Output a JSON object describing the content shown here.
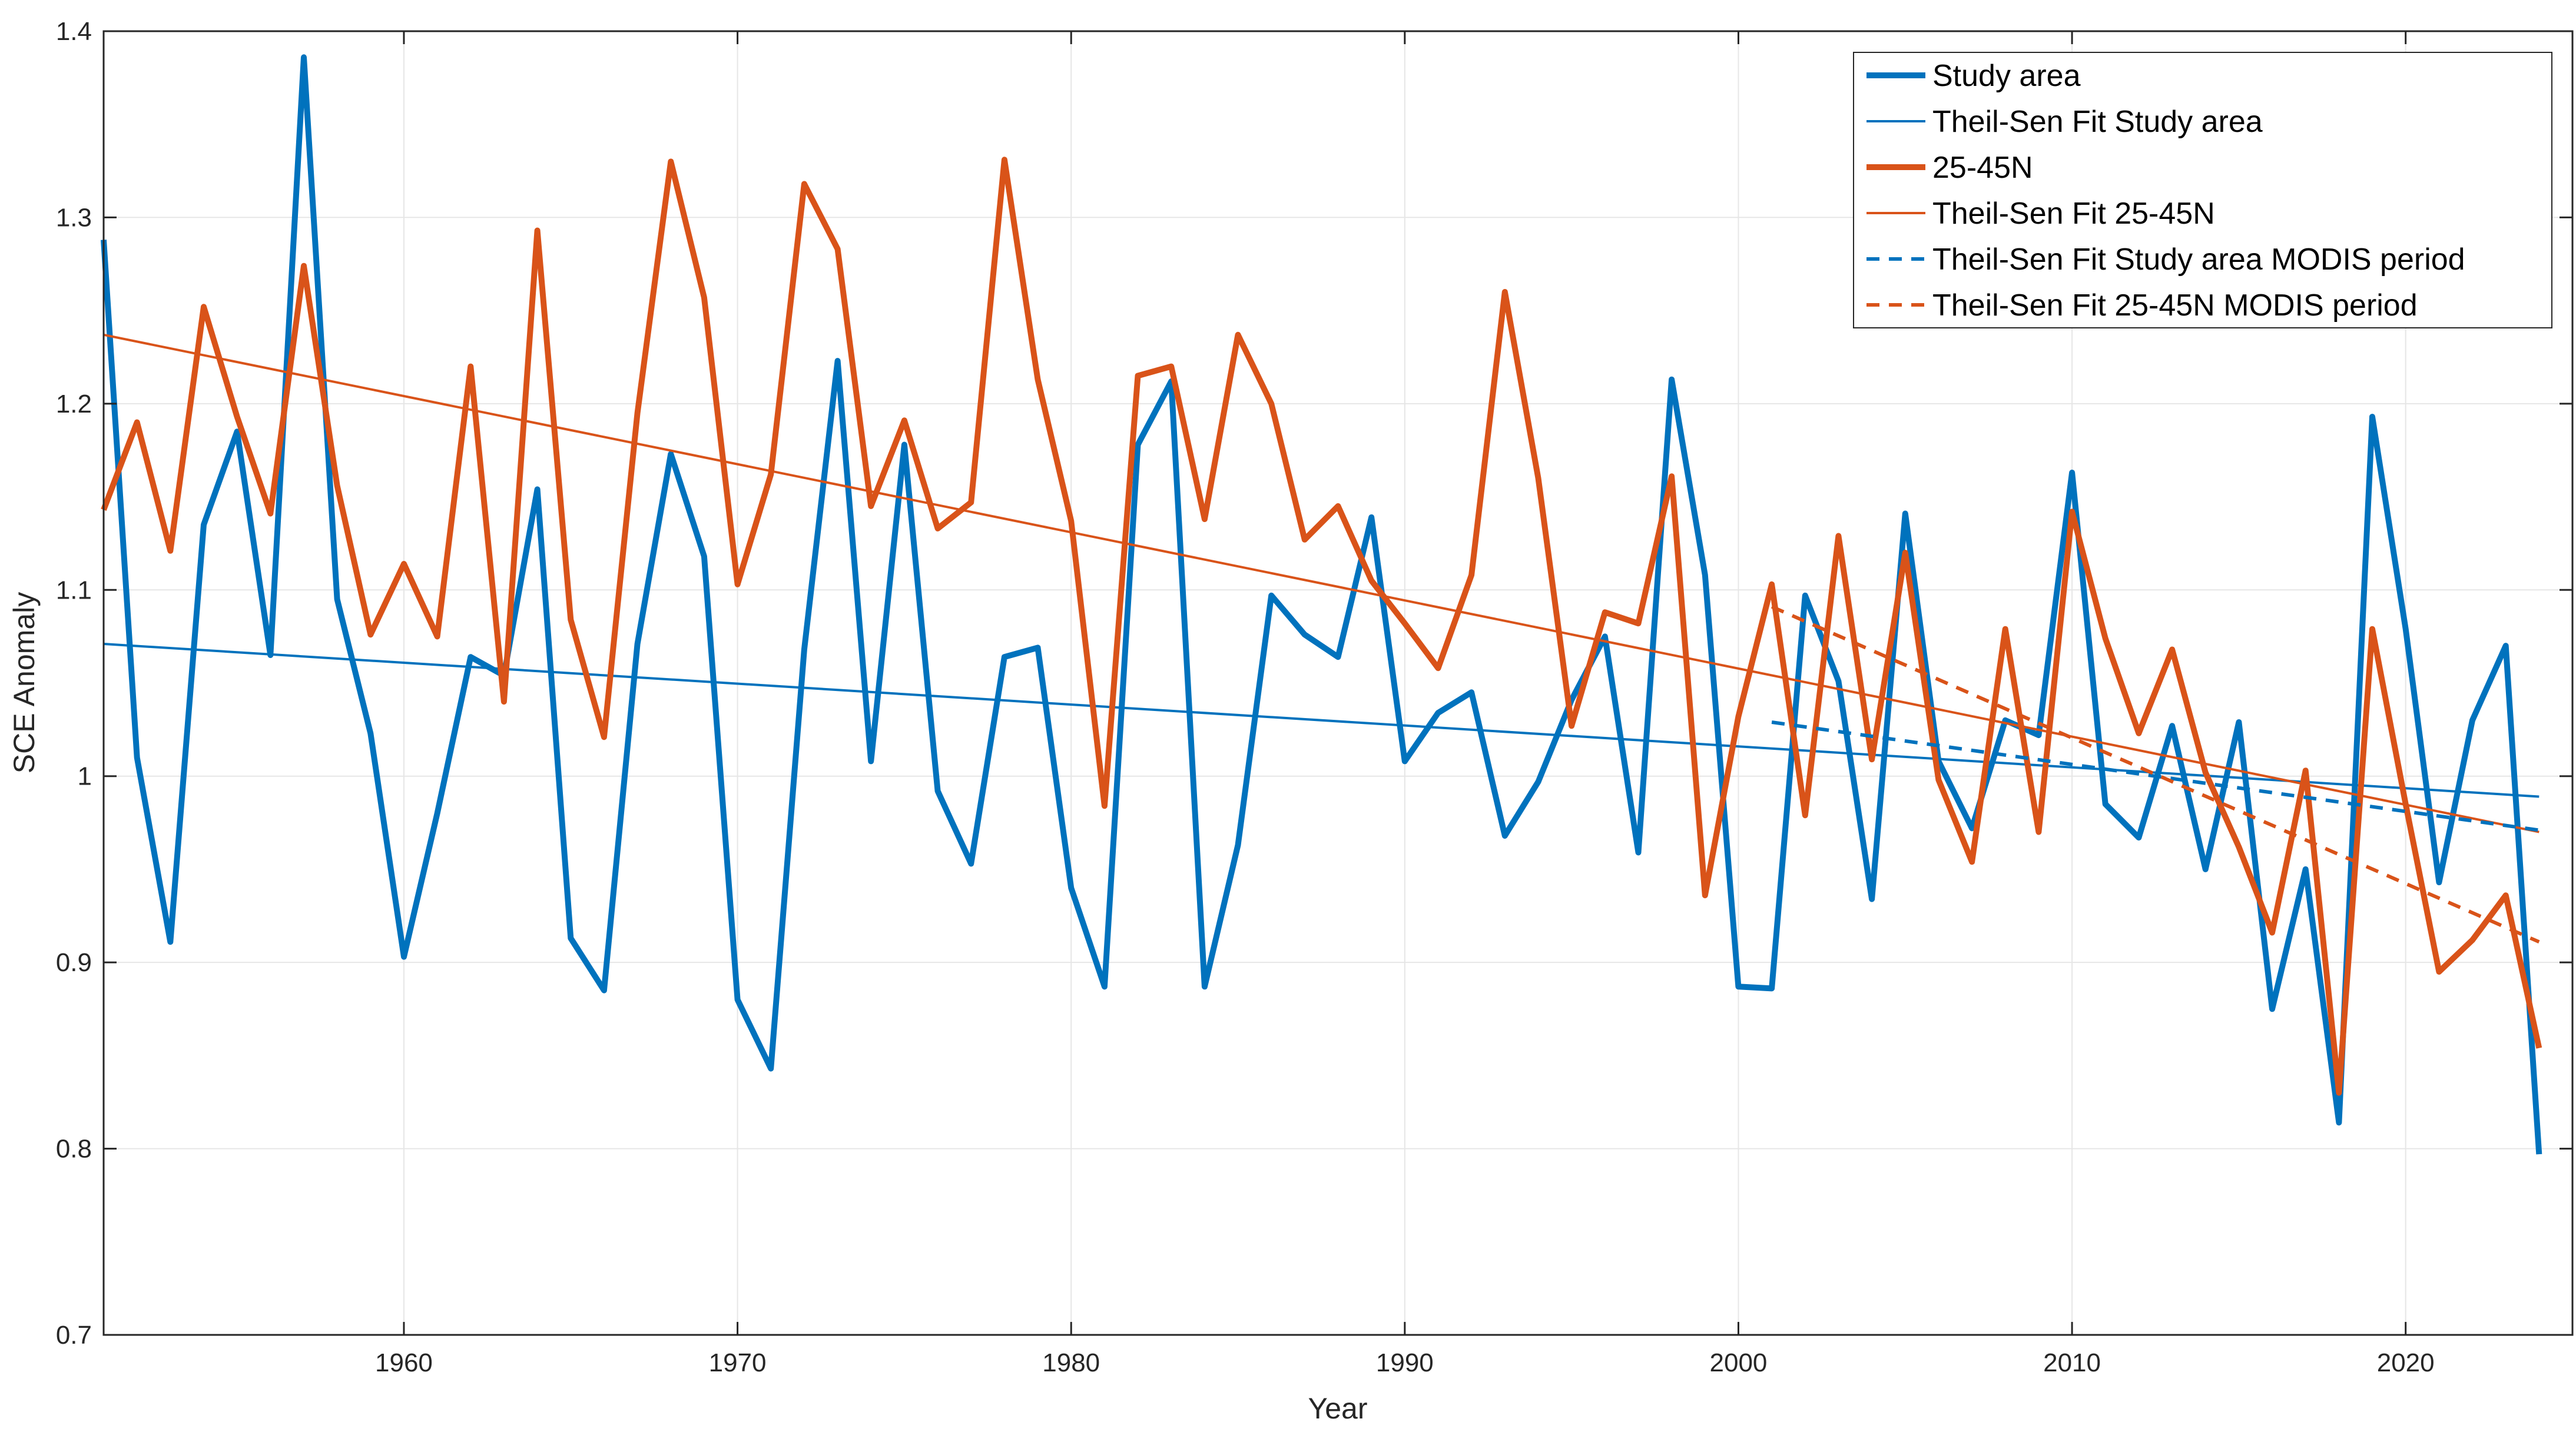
{
  "chart_data": {
    "type": "line",
    "title": "",
    "xlabel": "Year",
    "ylabel": "SCE Anomaly",
    "xlim": [
      1951,
      2025
    ],
    "ylim": [
      0.7,
      1.4
    ],
    "grid": true,
    "legend_position": "top-right",
    "xticks": [
      1960,
      1970,
      1980,
      1990,
      2000,
      2010,
      2020
    ],
    "yticks": [
      0.7,
      0.8,
      0.9,
      1,
      1.1,
      1.2,
      1.3,
      1.4
    ],
    "colors": {
      "blue": "#0072BD",
      "orange": "#D95319"
    },
    "series": [
      {
        "name": "Study area",
        "color": "#0072BD",
        "style": "solid-thick",
        "x": [
          1951,
          1952,
          1953,
          1954,
          1955,
          1956,
          1957,
          1958,
          1959,
          1960,
          1961,
          1962,
          1963,
          1964,
          1965,
          1966,
          1967,
          1968,
          1969,
          1970,
          1971,
          1972,
          1973,
          1974,
          1975,
          1976,
          1977,
          1978,
          1979,
          1980,
          1981,
          1982,
          1983,
          1984,
          1985,
          1986,
          1987,
          1988,
          1989,
          1990,
          1991,
          1992,
          1993,
          1994,
          1995,
          1996,
          1997,
          1998,
          1999,
          2000,
          2001,
          2002,
          2003,
          2004,
          2005,
          2006,
          2007,
          2008,
          2009,
          2010,
          2011,
          2012,
          2013,
          2014,
          2015,
          2016,
          2017,
          2018,
          2019,
          2020,
          2021,
          2022,
          2023,
          2024
        ],
        "values": [
          1.288,
          1.01,
          0.911,
          1.135,
          1.185,
          1.065,
          1.386,
          1.095,
          1.023,
          0.903,
          0.98,
          1.064,
          1.054,
          1.154,
          0.913,
          0.885,
          1.071,
          1.173,
          1.118,
          0.88,
          0.843,
          1.068,
          1.223,
          1.008,
          1.178,
          0.992,
          0.953,
          1.064,
          1.069,
          0.94,
          0.887,
          1.178,
          1.212,
          0.887,
          0.963,
          1.097,
          1.076,
          1.064,
          1.139,
          1.008,
          1.034,
          1.045,
          0.968,
          0.997,
          1.041,
          1.075,
          0.959,
          1.213,
          1.108,
          0.887,
          0.886,
          1.097,
          1.051,
          0.934,
          1.141,
          1.008,
          0.972,
          1.03,
          1.022,
          1.163,
          0.985,
          0.967,
          1.027,
          0.95,
          1.029,
          0.875,
          0.95,
          0.814,
          1.193,
          1.079,
          0.943,
          1.03,
          1.07,
          0.797
        ]
      },
      {
        "name": "Theil-Sen Fit Study area",
        "color": "#0072BD",
        "style": "solid-thin",
        "x": [
          1951,
          2024
        ],
        "values": [
          1.071,
          0.989
        ]
      },
      {
        "name": "25-45N",
        "color": "#D95319",
        "style": "solid-thick",
        "x": [
          1951,
          1952,
          1953,
          1954,
          1955,
          1956,
          1957,
          1958,
          1959,
          1960,
          1961,
          1962,
          1963,
          1964,
          1965,
          1966,
          1967,
          1968,
          1969,
          1970,
          1971,
          1972,
          1973,
          1974,
          1975,
          1976,
          1977,
          1978,
          1979,
          1980,
          1981,
          1982,
          1983,
          1984,
          1985,
          1986,
          1987,
          1988,
          1989,
          1990,
          1991,
          1992,
          1993,
          1994,
          1995,
          1996,
          1997,
          1998,
          1999,
          2000,
          2001,
          2002,
          2003,
          2004,
          2005,
          2006,
          2007,
          2008,
          2009,
          2010,
          2011,
          2012,
          2013,
          2014,
          2015,
          2016,
          2017,
          2018,
          2019,
          2020,
          2021,
          2022,
          2023,
          2024
        ],
        "values": [
          1.143,
          1.19,
          1.121,
          1.252,
          1.193,
          1.141,
          1.274,
          1.156,
          1.076,
          1.114,
          1.075,
          1.22,
          1.04,
          1.293,
          1.084,
          1.021,
          1.195,
          1.33,
          1.257,
          1.103,
          1.162,
          1.318,
          1.283,
          1.145,
          1.191,
          1.133,
          1.147,
          1.331,
          1.213,
          1.137,
          0.984,
          1.215,
          1.22,
          1.138,
          1.237,
          1.2,
          1.127,
          1.145,
          1.105,
          1.082,
          1.058,
          1.108,
          1.26,
          1.16,
          1.027,
          1.088,
          1.082,
          1.161,
          0.936,
          1.032,
          1.103,
          0.979,
          1.129,
          1.009,
          1.12,
          0.998,
          0.954,
          1.079,
          0.97,
          1.142,
          1.074,
          1.023,
          1.068,
          1.002,
          0.962,
          0.916,
          1.003,
          0.83,
          1.079,
          0.985,
          0.895,
          0.912,
          0.936,
          0.854
        ]
      },
      {
        "name": "Theil-Sen Fit 25-45N",
        "color": "#D95319",
        "style": "solid-thin",
        "x": [
          1951,
          2024
        ],
        "values": [
          1.237,
          0.97
        ]
      },
      {
        "name": "Theil-Sen Fit Study area MODIS period",
        "color": "#0072BD",
        "style": "dashed",
        "x": [
          2001,
          2024
        ],
        "values": [
          1.029,
          0.971
        ]
      },
      {
        "name": "Theil-Sen Fit 25-45N MODIS period",
        "color": "#D95319",
        "style": "dashed",
        "x": [
          2001,
          2024
        ],
        "values": [
          1.091,
          0.911
        ]
      }
    ]
  }
}
